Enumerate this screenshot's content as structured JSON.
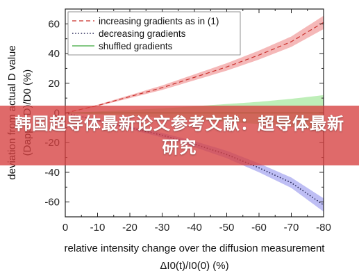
{
  "banner": {
    "text": "韩国超导体最新论文参考文献：超导体最新研究"
  },
  "chart_data": {
    "type": "line",
    "x_label_line1": "relative intensity change over the diffusion measurement",
    "x_label_line2": "ΔI0(t)/I0(0) (%)",
    "y_label_line1": "deviation from actual D value",
    "y_label_line2": "(Dapp − D)/D0 (%)",
    "xlim": [
      0,
      -80
    ],
    "ylim": [
      -70,
      70
    ],
    "x_ticks": [
      0,
      -10,
      -20,
      -30,
      -40,
      -50,
      -60,
      -70,
      -80
    ],
    "y_ticks": [
      60,
      40,
      20,
      0,
      -20,
      -40,
      -60
    ],
    "x": [
      0,
      -10,
      -20,
      -30,
      -40,
      -50,
      -60,
      -70,
      -80
    ],
    "grid": false,
    "legend_position": "top-left",
    "series": [
      {
        "name": "increasing gradients as in (1)",
        "style": "dashed",
        "color": "#c9302c",
        "band_color": "#f2a0a0",
        "values": [
          0,
          5,
          11,
          17,
          24,
          31,
          39,
          48,
          61
        ],
        "band": [
          0,
          0.5,
          1,
          1.5,
          2,
          2.5,
          3,
          3.5,
          4.5
        ]
      },
      {
        "name": "decreasing gradients",
        "style": "dotted",
        "color": "#2a2a5a",
        "band_color": "#a8a8f0",
        "values": [
          0,
          -5,
          -10,
          -15,
          -21,
          -28,
          -37,
          -47,
          -62
        ],
        "band": [
          0,
          0.5,
          1,
          1.5,
          2,
          2.5,
          3,
          3.5,
          4.5
        ]
      },
      {
        "name": "shuffled gradients",
        "style": "solid",
        "color": "#3aa83a",
        "band_color": "#a8e8a0",
        "values": [
          0,
          0,
          0,
          0,
          0,
          0,
          0,
          0,
          0
        ],
        "band": [
          0,
          1,
          2,
          3,
          4.5,
          6,
          7.5,
          9.5,
          12
        ]
      }
    ]
  }
}
